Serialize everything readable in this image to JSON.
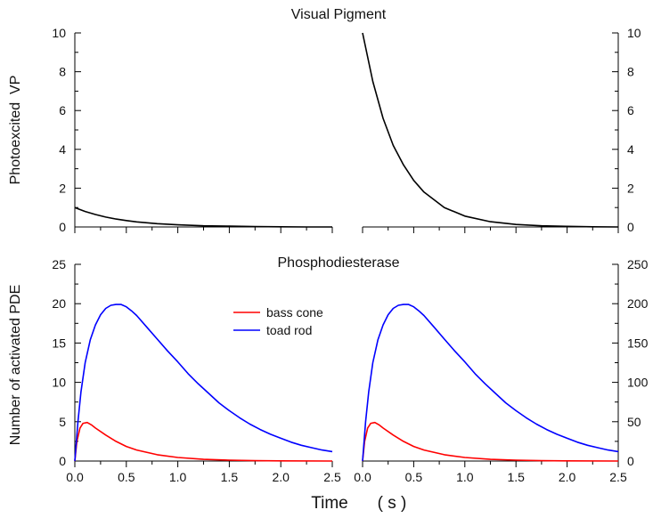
{
  "chart_data": [
    {
      "type": "line",
      "title": "Visual Pigment",
      "ylabel": "Photoexcited  VP",
      "xlim": [
        0,
        2.5
      ],
      "ylim_left": [
        0,
        10
      ],
      "ylim_right": [
        0,
        10
      ],
      "yticks_left": [
        "0",
        "2",
        "4",
        "6",
        "8",
        "10"
      ],
      "yticks_right": [
        "0",
        "2",
        "4",
        "6",
        "8",
        "10"
      ],
      "grid": false,
      "panels": [
        {
          "series": [
            {
              "color": "#000000",
              "x": [
                0,
                0.1,
                0.2,
                0.3,
                0.4,
                0.5,
                0.6,
                0.8,
                1.0,
                1.25,
                1.5,
                1.75,
                2.0,
                2.25,
                2.5
              ],
              "y": [
                1.0,
                0.8,
                0.64,
                0.51,
                0.41,
                0.33,
                0.26,
                0.17,
                0.11,
                0.06,
                0.04,
                0.02,
                0.01,
                0.0,
                0.0
              ]
            }
          ]
        },
        {
          "series": [
            {
              "color": "#000000",
              "x": [
                0,
                0.1,
                0.2,
                0.3,
                0.4,
                0.5,
                0.6,
                0.8,
                1.0,
                1.25,
                1.5,
                1.75,
                2.0,
                2.25,
                2.5
              ],
              "y": [
                10.0,
                7.5,
                5.6,
                4.2,
                3.2,
                2.4,
                1.8,
                1.0,
                0.56,
                0.27,
                0.13,
                0.06,
                0.03,
                0.01,
                0.0
              ]
            }
          ]
        }
      ]
    },
    {
      "type": "line",
      "title": "Phosphodiesterase",
      "ylabel": "Number of activated PDE",
      "xlabel": "Time",
      "xlabel_unit": "( s )",
      "xlim": [
        0,
        2.5
      ],
      "ylim_left": [
        0,
        25
      ],
      "ylim_right": [
        0,
        250
      ],
      "xticks": [
        "0.0",
        "0.5",
        "1.0",
        "1.5",
        "2.0",
        "2.5"
      ],
      "yticks_left": [
        "0",
        "5",
        "10",
        "15",
        "20",
        "25"
      ],
      "yticks_right": [
        "0",
        "50",
        "100",
        "150",
        "200",
        "250"
      ],
      "legend": {
        "placement": "top-center-left",
        "entries": [
          {
            "name": "bass cone",
            "color": "#ff0000"
          },
          {
            "name": "toad rod",
            "color": "#0000ff"
          }
        ]
      },
      "grid": false,
      "panels": [
        {
          "series": [
            {
              "name": "bass cone",
              "color": "#ff0000",
              "x": [
                0,
                0.02,
                0.05,
                0.08,
                0.12,
                0.16,
                0.2,
                0.3,
                0.4,
                0.5,
                0.6,
                0.8,
                1.0,
                1.25,
                1.5,
                1.75,
                2.0,
                2.5
              ],
              "y": [
                0,
                2.5,
                4.2,
                4.8,
                4.9,
                4.6,
                4.2,
                3.3,
                2.5,
                1.85,
                1.4,
                0.8,
                0.45,
                0.22,
                0.11,
                0.05,
                0.02,
                0.0
              ]
            },
            {
              "name": "toad rod",
              "color": "#0000ff",
              "x": [
                0,
                0.03,
                0.06,
                0.1,
                0.15,
                0.2,
                0.25,
                0.3,
                0.35,
                0.4,
                0.45,
                0.5,
                0.55,
                0.6,
                0.7,
                0.8,
                0.9,
                1.0,
                1.1,
                1.2,
                1.3,
                1.4,
                1.5,
                1.6,
                1.7,
                1.8,
                1.9,
                2.0,
                2.1,
                2.2,
                2.3,
                2.4,
                2.5
              ],
              "y": [
                0,
                5.0,
                8.8,
                12.5,
                15.4,
                17.3,
                18.6,
                19.4,
                19.8,
                19.9,
                19.9,
                19.6,
                19.1,
                18.5,
                17.0,
                15.5,
                14.0,
                12.6,
                11.1,
                9.8,
                8.6,
                7.4,
                6.4,
                5.5,
                4.7,
                4.0,
                3.4,
                2.9,
                2.4,
                2.0,
                1.7,
                1.4,
                1.2
              ]
            }
          ]
        },
        {
          "series": [
            {
              "name": "bass cone",
              "color": "#ff0000",
              "x": [
                0,
                0.02,
                0.05,
                0.08,
                0.12,
                0.16,
                0.2,
                0.3,
                0.4,
                0.5,
                0.6,
                0.8,
                1.0,
                1.25,
                1.5,
                1.75,
                2.0,
                2.5
              ],
              "y": [
                0,
                25,
                42,
                48,
                49,
                46,
                42,
                33,
                25,
                18.5,
                14,
                8,
                4.5,
                2.2,
                1.1,
                0.5,
                0.2,
                0.0
              ]
            },
            {
              "name": "toad rod",
              "color": "#0000ff",
              "x": [
                0,
                0.03,
                0.06,
                0.1,
                0.15,
                0.2,
                0.25,
                0.3,
                0.35,
                0.4,
                0.45,
                0.5,
                0.55,
                0.6,
                0.7,
                0.8,
                0.9,
                1.0,
                1.1,
                1.2,
                1.3,
                1.4,
                1.5,
                1.6,
                1.7,
                1.8,
                1.9,
                2.0,
                2.1,
                2.2,
                2.3,
                2.4,
                2.5
              ],
              "y": [
                0,
                50,
                88,
                125,
                154,
                173,
                186,
                194,
                198,
                199,
                199,
                196,
                191,
                185,
                170,
                155,
                140,
                126,
                111,
                98,
                86,
                74,
                64,
                55,
                47,
                40,
                34,
                29,
                24,
                20,
                17,
                14,
                12
              ]
            }
          ]
        }
      ]
    }
  ]
}
